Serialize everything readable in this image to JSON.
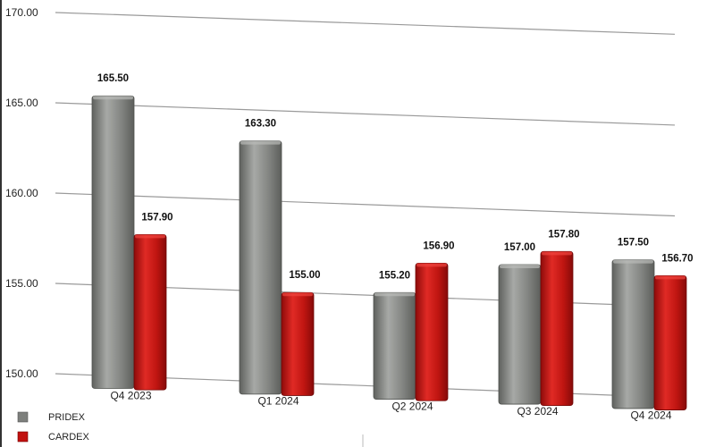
{
  "chart_data": {
    "type": "bar",
    "categories": [
      "Q4 2023",
      "Q1 2024",
      "Q2 2024",
      "Q3 2024",
      "Q4 2024"
    ],
    "series": [
      {
        "name": "PRIDEX",
        "values": [
          165.5,
          163.3,
          155.2,
          157.0,
          157.5
        ],
        "value_labels": [
          "165.50",
          "163.30",
          "155.20",
          "157.00",
          "157.50"
        ],
        "color": "#7d7f7c"
      },
      {
        "name": "CARDEX",
        "values": [
          157.9,
          155.0,
          156.9,
          157.8,
          156.7
        ],
        "value_labels": [
          "157.90",
          "155.00",
          "156.90",
          "157.80",
          "156.70"
        ],
        "color": "#c1110f"
      }
    ],
    "y_ticks": [
      "150.00",
      "155.00",
      "160.00",
      "165.00",
      "170.00"
    ],
    "ylim": [
      150,
      170
    ],
    "grid": true,
    "legend": "bottom-left",
    "title": "",
    "xlabel": "",
    "ylabel": ""
  }
}
